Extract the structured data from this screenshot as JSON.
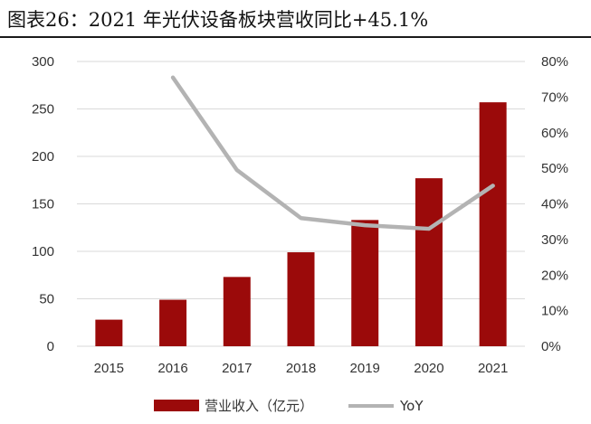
{
  "header": {
    "title": "图表26：2021 年光伏设备板块营收同比+45.1%"
  },
  "chart_data": {
    "type": "bar+line",
    "categories": [
      "2015",
      "2016",
      "2017",
      "2018",
      "2019",
      "2020",
      "2021"
    ],
    "series": [
      {
        "name": "营业收入（亿元）",
        "type": "bar",
        "axis": "left",
        "color": "#9b0a0a",
        "values": [
          28,
          49,
          73,
          99,
          133,
          177,
          257
        ]
      },
      {
        "name": "YoY",
        "type": "line",
        "axis": "right",
        "color": "#b3b3b3",
        "values": [
          null,
          75.5,
          49.5,
          36,
          34,
          33,
          45.1
        ]
      }
    ],
    "y_left": {
      "min": 0,
      "max": 300,
      "ticks": [
        "0",
        "50",
        "100",
        "150",
        "200",
        "250",
        "300"
      ]
    },
    "y_right": {
      "min": 0,
      "max": 80,
      "ticks": [
        "0%",
        "10%",
        "20%",
        "30%",
        "40%",
        "50%",
        "60%",
        "70%",
        "80%"
      ]
    },
    "grid": true,
    "legend_position": "bottom"
  }
}
